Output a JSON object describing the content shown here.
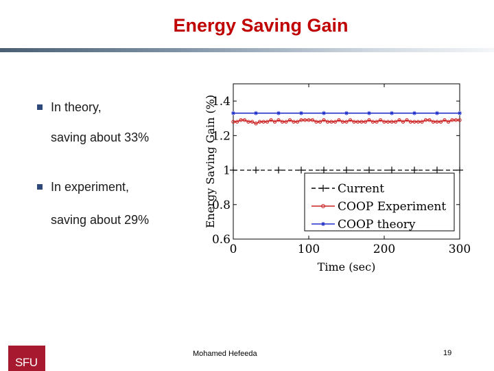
{
  "slide": {
    "title": "Energy Saving Gain",
    "bullets": [
      {
        "label": "In theory,",
        "detail": "saving about 33%"
      },
      {
        "label": "In experiment,",
        "detail": "saving about 29%"
      }
    ],
    "footer_name": "Mohamed  Hefeeda",
    "page_number": "19",
    "logo_text": "SFU"
  },
  "colors": {
    "title": "#c00000",
    "current": "#000000",
    "experiment": "#cc2020",
    "theory": "#1f2fc8",
    "logo": "#a6192e"
  },
  "chart_data": {
    "type": "line",
    "title": "",
    "xlabel": "Time (sec)",
    "ylabel": "Energy Saving Gain (%)",
    "xlim": [
      0,
      300
    ],
    "ylim": [
      0.6,
      1.5
    ],
    "x_ticks": [
      0,
      100,
      200,
      300
    ],
    "x_tick_labels": [
      "0",
      "100",
      "200",
      "300"
    ],
    "y_ticks": [
      0.6,
      0.8,
      1,
      1.2,
      1.4
    ],
    "y_tick_labels": [
      "0.6",
      "0.8",
      "1",
      "1.2",
      "1.4"
    ],
    "legend_position": "bottom-right",
    "series": [
      {
        "name": "Current",
        "style": "dashed",
        "marker": "plus",
        "color": "#000000",
        "x": [
          0,
          30,
          60,
          90,
          120,
          150,
          180,
          210,
          240,
          270,
          300
        ],
        "y": [
          1,
          1,
          1,
          1,
          1,
          1,
          1,
          1,
          1,
          1,
          1
        ]
      },
      {
        "name": "COOP Experiment",
        "style": "solid",
        "marker": "circle",
        "color": "#cc2020",
        "x": [
          0,
          5,
          10,
          15,
          20,
          25,
          30,
          35,
          40,
          45,
          50,
          55,
          60,
          65,
          70,
          75,
          80,
          85,
          90,
          95,
          100,
          105,
          110,
          115,
          120,
          125,
          130,
          135,
          140,
          145,
          150,
          155,
          160,
          165,
          170,
          175,
          180,
          185,
          190,
          195,
          200,
          205,
          210,
          215,
          220,
          225,
          230,
          235,
          240,
          245,
          250,
          255,
          260,
          265,
          270,
          275,
          280,
          285,
          290,
          295,
          300
        ],
        "y": [
          1.28,
          1.28,
          1.29,
          1.29,
          1.28,
          1.28,
          1.27,
          1.28,
          1.28,
          1.28,
          1.29,
          1.28,
          1.29,
          1.28,
          1.28,
          1.29,
          1.28,
          1.28,
          1.29,
          1.29,
          1.29,
          1.29,
          1.28,
          1.28,
          1.29,
          1.28,
          1.28,
          1.28,
          1.29,
          1.28,
          1.28,
          1.29,
          1.28,
          1.28,
          1.28,
          1.28,
          1.29,
          1.28,
          1.28,
          1.29,
          1.28,
          1.28,
          1.28,
          1.28,
          1.29,
          1.28,
          1.29,
          1.28,
          1.28,
          1.28,
          1.28,
          1.29,
          1.29,
          1.28,
          1.28,
          1.28,
          1.29,
          1.28,
          1.29,
          1.29,
          1.29
        ]
      },
      {
        "name": "COOP theory",
        "style": "solid",
        "marker": "star",
        "color": "#1f2fc8",
        "x": [
          0,
          30,
          60,
          90,
          120,
          150,
          180,
          210,
          240,
          270,
          300
        ],
        "y": [
          1.33,
          1.33,
          1.33,
          1.33,
          1.33,
          1.33,
          1.33,
          1.33,
          1.33,
          1.33,
          1.33
        ]
      }
    ]
  }
}
